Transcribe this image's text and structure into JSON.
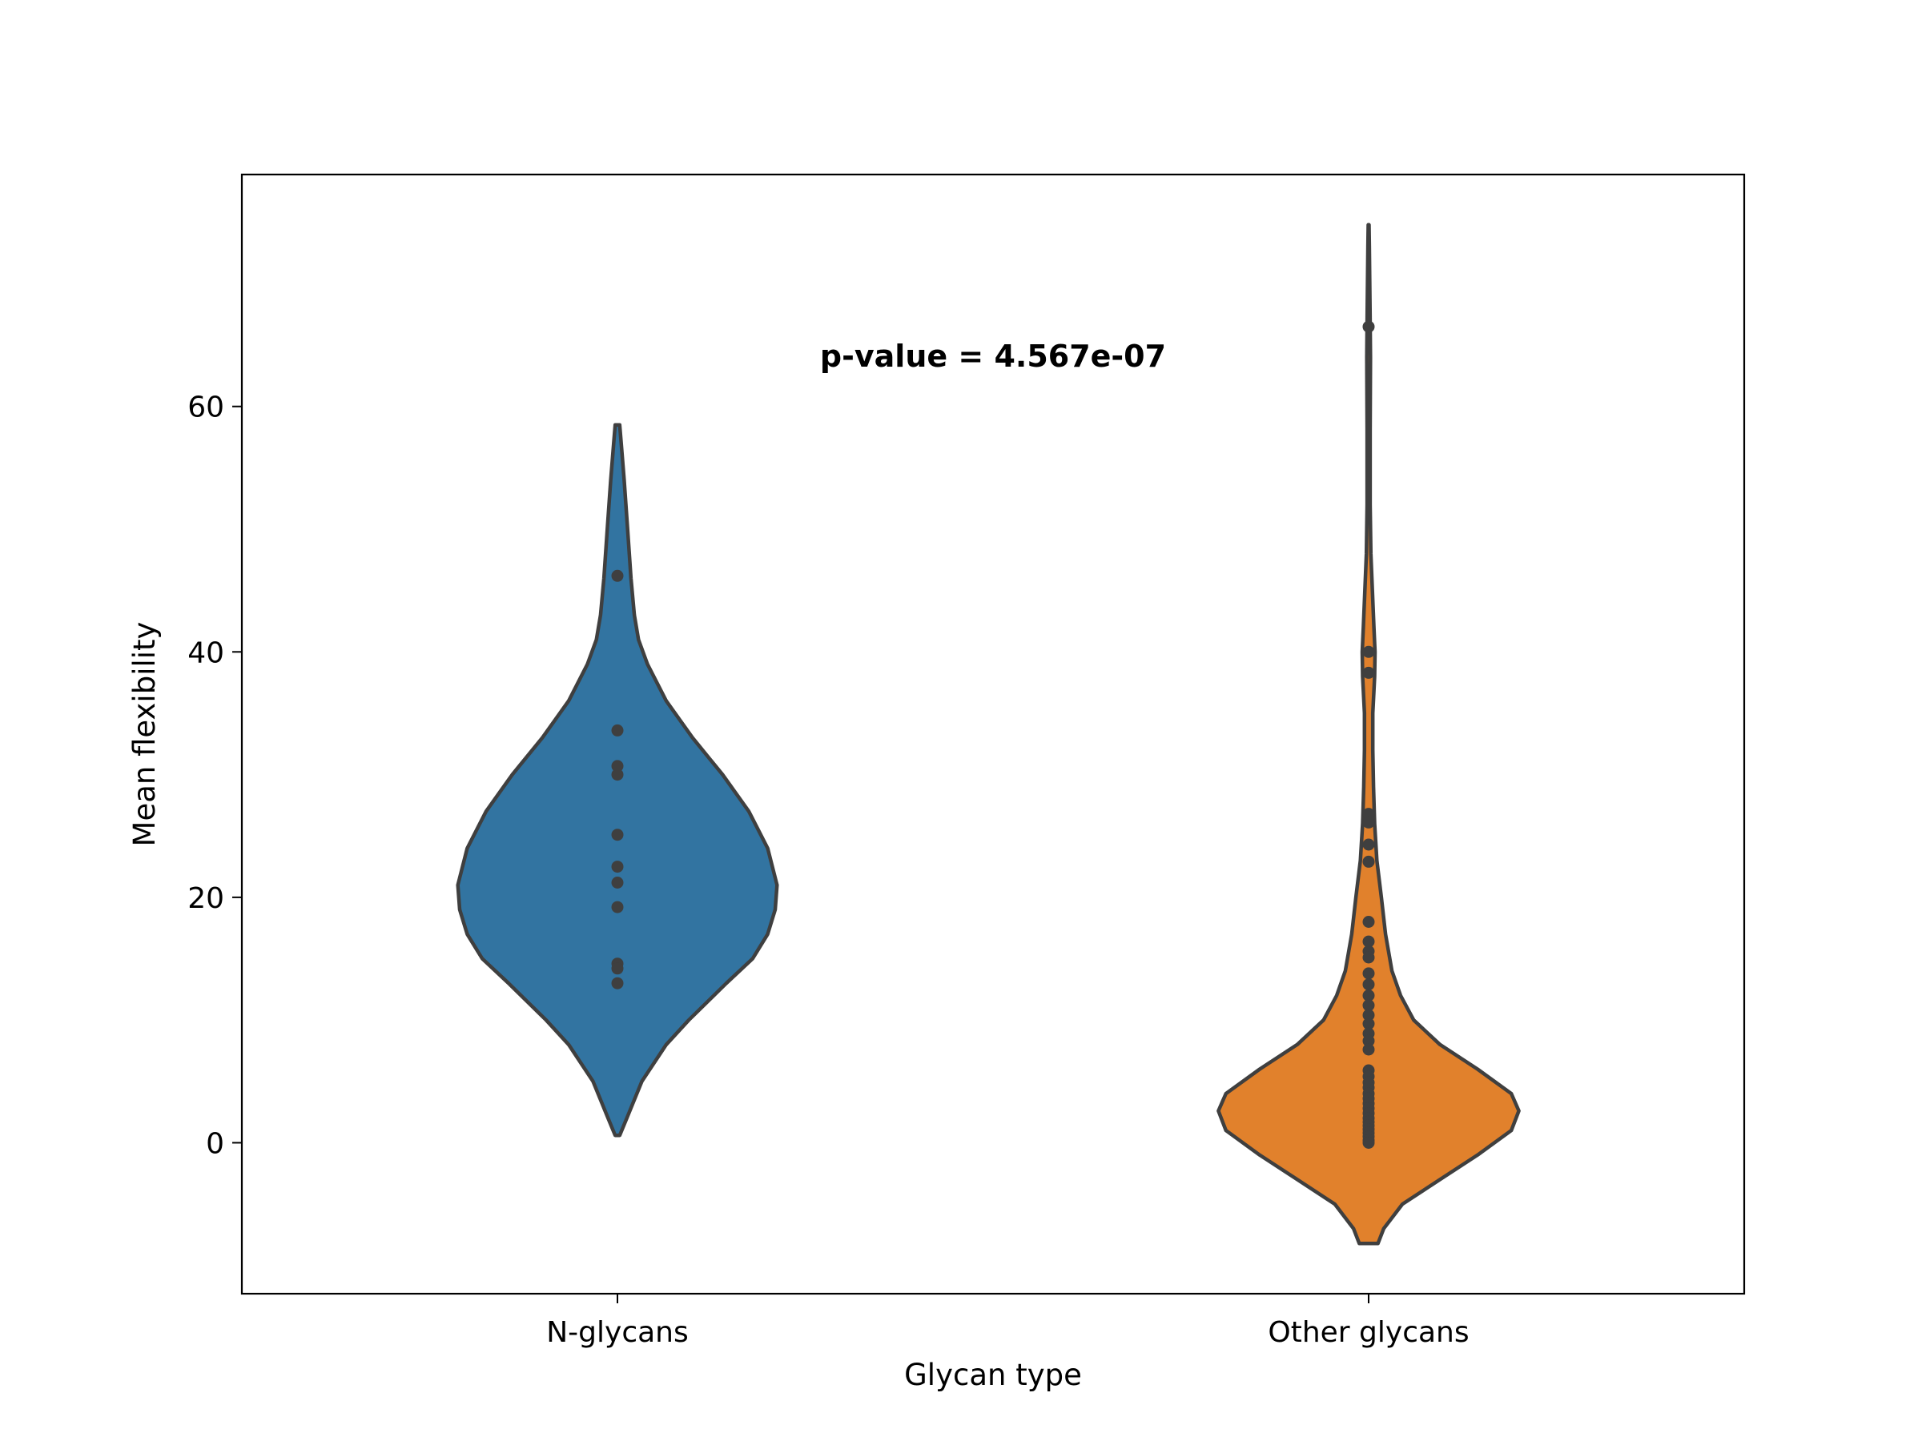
{
  "chart_data": {
    "type": "violin",
    "xlabel": "Glycan type",
    "ylabel": "Mean flexibility",
    "ylim": [
      -12.3,
      78.9
    ],
    "yticks": [
      0,
      20,
      40,
      60
    ],
    "annotation": "p-value = 4.567e-07",
    "grid": false,
    "categories": [
      "N-glycans",
      "Other glycans"
    ],
    "violins": [
      {
        "category": "N-glycans",
        "color": "#3274a1",
        "density": [
          [
            0.6,
            0.006
          ],
          [
            2,
            0.025
          ],
          [
            5,
            0.065
          ],
          [
            8,
            0.13
          ],
          [
            10,
            0.19
          ],
          [
            13,
            0.29
          ],
          [
            15,
            0.36
          ],
          [
            17,
            0.4
          ],
          [
            19,
            0.42
          ],
          [
            21,
            0.425
          ],
          [
            24,
            0.4
          ],
          [
            27,
            0.35
          ],
          [
            30,
            0.28
          ],
          [
            33,
            0.2
          ],
          [
            36,
            0.13
          ],
          [
            39,
            0.08
          ],
          [
            41,
            0.056
          ],
          [
            43,
            0.045
          ],
          [
            46,
            0.036
          ],
          [
            50,
            0.027
          ],
          [
            54,
            0.018
          ],
          [
            57,
            0.01
          ],
          [
            58.5,
            0.006
          ]
        ],
        "points": [
          46.2,
          33.6,
          30.7,
          30.0,
          25.1,
          22.5,
          21.2,
          19.2,
          14.6,
          14.2,
          13.0
        ]
      },
      {
        "category": "Other glycans",
        "color": "#e1812c",
        "density": [
          [
            -8.2,
            0.025
          ],
          [
            -7,
            0.04
          ],
          [
            -5,
            0.09
          ],
          [
            -3,
            0.19
          ],
          [
            -1,
            0.29
          ],
          [
            1,
            0.38
          ],
          [
            2.6,
            0.4
          ],
          [
            4,
            0.38
          ],
          [
            6,
            0.29
          ],
          [
            8,
            0.19
          ],
          [
            10,
            0.12
          ],
          [
            12,
            0.085
          ],
          [
            14,
            0.062
          ],
          [
            17,
            0.045
          ],
          [
            20,
            0.034
          ],
          [
            23,
            0.022
          ],
          [
            26,
            0.016
          ],
          [
            29,
            0.013
          ],
          [
            32,
            0.011
          ],
          [
            35,
            0.011
          ],
          [
            38,
            0.016
          ],
          [
            40,
            0.017
          ],
          [
            42,
            0.014
          ],
          [
            45,
            0.01
          ],
          [
            48,
            0.006
          ],
          [
            52,
            0.004
          ],
          [
            58,
            0.004
          ],
          [
            64,
            0.005
          ],
          [
            67,
            0.004
          ],
          [
            70,
            0.003
          ],
          [
            73,
            0.002
          ],
          [
            74.8,
            0.001
          ]
        ],
        "points": [
          66.5,
          40.0,
          38.3,
          26.8,
          26.1,
          24.3,
          22.9,
          18.0,
          16.4,
          15.6,
          15.1,
          13.8,
          12.9,
          12.0,
          11.2,
          10.4,
          9.7,
          8.9,
          8.3,
          7.6,
          5.9,
          5.4,
          4.9,
          4.5,
          4.0,
          3.6,
          3.2,
          2.8,
          2.4,
          2.0,
          1.7,
          1.4,
          1.1,
          0.8,
          0.5,
          0.2,
          0.0
        ]
      }
    ]
  }
}
